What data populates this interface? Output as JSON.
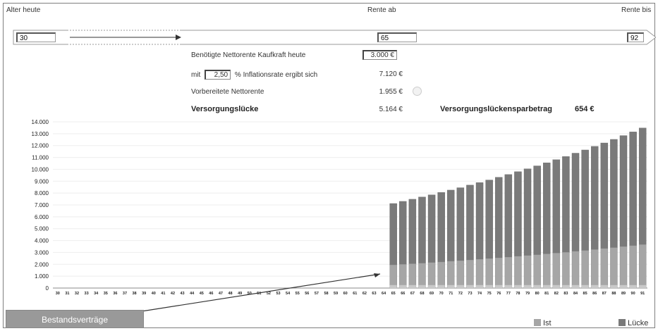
{
  "header": {
    "age_today_label": "Alter heute",
    "age_today_value": "30",
    "pension_from_label": "Rente ab",
    "pension_from_value": "65",
    "pension_until_label": "Rente bis",
    "pension_until_value": "92"
  },
  "calc": {
    "needed_label": "Benötigte Nettorente Kaufkraft heute",
    "needed_value": "3.000 €",
    "mit_label": "mit",
    "inflation_value": "2,50",
    "inflation_label": "% Inflationsrate ergibt sich",
    "inflated_value": "7.120 €",
    "prepared_label": "Vorbereitete Nettorente",
    "prepared_value": "1.955 €",
    "gap_label": "Versorgungslücke",
    "gap_value": "5.164 €",
    "saving_label": "Versorgungslückensparbetrag",
    "saving_value": "654 €"
  },
  "bestand_button": "Bestandsverträge",
  "legend": {
    "ist": "Ist",
    "luecke": "Lücke"
  },
  "colors": {
    "ist": "#a6a6a6",
    "luecke": "#7a7a7a",
    "base": "#c9c9c9",
    "arrow": "#333333"
  },
  "chart_data": {
    "type": "bar",
    "stacked": true,
    "ylim": [
      0,
      14000
    ],
    "yticks": [
      "0",
      "1.000",
      "2.000",
      "3.000",
      "4.000",
      "5.000",
      "6.000",
      "7.000",
      "8.000",
      "9.000",
      "10.000",
      "11.000",
      "12.000",
      "13.000",
      "14.000"
    ],
    "categories": [
      "30",
      "31",
      "32",
      "33",
      "34",
      "35",
      "36",
      "37",
      "38",
      "39",
      "40",
      "41",
      "42",
      "43",
      "44",
      "45",
      "46",
      "47",
      "48",
      "49",
      "50",
      "51",
      "52",
      "53",
      "54",
      "55",
      "56",
      "57",
      "58",
      "59",
      "60",
      "61",
      "62",
      "63",
      "64",
      "65",
      "66",
      "67",
      "68",
      "69",
      "70",
      "71",
      "72",
      "73",
      "74",
      "75",
      "76",
      "77",
      "78",
      "79",
      "80",
      "81",
      "82",
      "83",
      "84",
      "85",
      "86",
      "87",
      "88",
      "89",
      "90",
      "91"
    ],
    "series": [
      {
        "name": "Ist",
        "values": [
          0,
          0,
          0,
          0,
          0,
          0,
          0,
          0,
          0,
          0,
          0,
          0,
          0,
          0,
          0,
          0,
          0,
          0,
          0,
          0,
          0,
          0,
          0,
          0,
          0,
          0,
          0,
          0,
          0,
          0,
          0,
          0,
          0,
          0,
          0,
          1955,
          2000,
          2050,
          2100,
          2150,
          2200,
          2260,
          2310,
          2370,
          2430,
          2490,
          2550,
          2610,
          2680,
          2740,
          2810,
          2880,
          2950,
          3020,
          3100,
          3170,
          3250,
          3330,
          3410,
          3500,
          3580,
          3670
        ]
      },
      {
        "name": "Lücke",
        "values": [
          0,
          0,
          0,
          0,
          0,
          0,
          0,
          0,
          0,
          0,
          0,
          0,
          0,
          0,
          0,
          0,
          0,
          0,
          0,
          0,
          0,
          0,
          0,
          0,
          0,
          0,
          0,
          0,
          0,
          0,
          0,
          0,
          0,
          0,
          0,
          5164,
          5300,
          5430,
          5570,
          5700,
          5850,
          5990,
          6140,
          6300,
          6450,
          6610,
          6780,
          6950,
          7120,
          7300,
          7480,
          7670,
          7860,
          8060,
          8260,
          8460,
          8680,
          8890,
          9110,
          9340,
          9570,
          9810
        ]
      }
    ]
  }
}
